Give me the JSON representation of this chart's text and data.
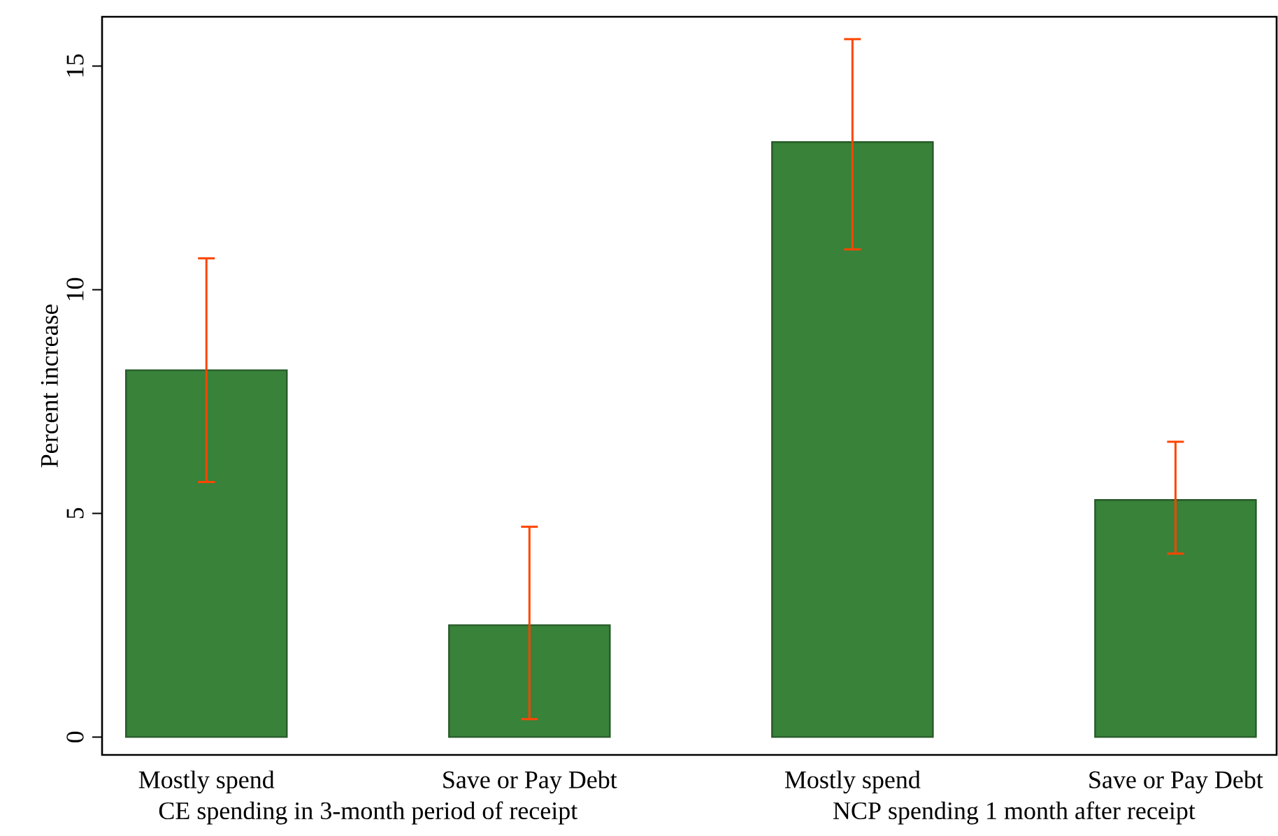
{
  "chart_data": {
    "type": "bar",
    "ylabel": "Percent increase",
    "categories": [
      "Mostly spend",
      "Save or Pay Debt",
      "Mostly spend",
      "Save or Pay Debt"
    ],
    "values": [
      8.2,
      2.5,
      13.3,
      5.3
    ],
    "errors": [
      [
        5.7,
        10.7
      ],
      [
        0.4,
        4.7
      ],
      [
        10.9,
        15.6
      ],
      [
        4.1,
        6.6
      ]
    ],
    "color": "#38823a",
    "ylim": [
      -0.4,
      16.1
    ],
    "yticks": [
      0,
      5,
      10,
      15
    ],
    "annotations": [
      "CE spending in 3-month period of receipt",
      "NCP spending 1 month after receipt"
    ]
  }
}
